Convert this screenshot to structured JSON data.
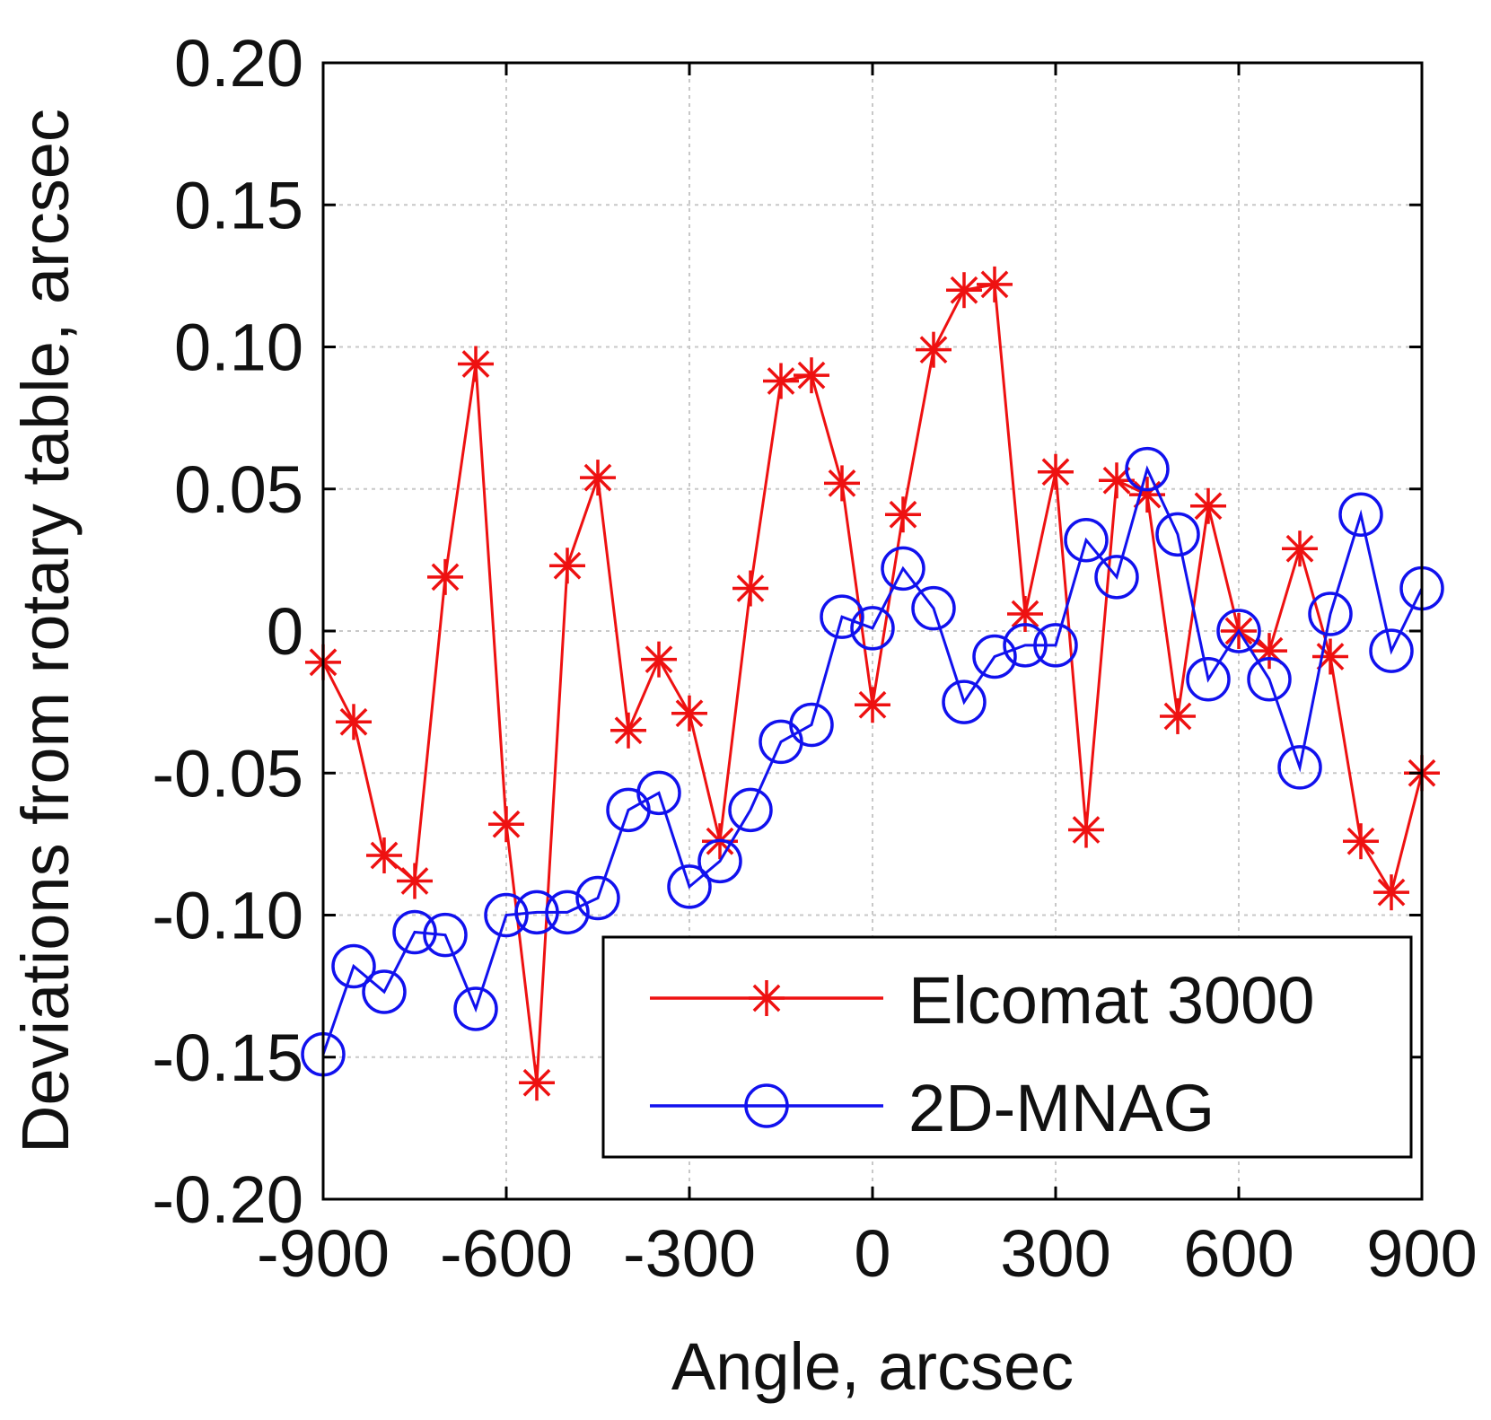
{
  "chart_data": {
    "type": "line",
    "title": "",
    "xlabel": "Angle, arcsec",
    "ylabel": "Deviations from rotary table, arcsec",
    "xlim": [
      -900,
      900
    ],
    "ylim": [
      -0.2,
      0.2
    ],
    "xticks": [
      -900,
      -600,
      -300,
      0,
      300,
      600,
      900
    ],
    "xtick_labels": [
      "-900",
      "-600",
      "-300",
      "0",
      "300",
      "600",
      "900"
    ],
    "yticks": [
      0.2,
      0.15,
      0.1,
      0.05,
      0,
      -0.05,
      -0.1,
      -0.15,
      -0.2
    ],
    "ytick_labels": [
      "0.20",
      "0.15",
      "0.10",
      "0.05",
      "0",
      "-0.05",
      "-0.10",
      "-0.15",
      "-0.20"
    ],
    "grid": true,
    "legend_position": "bottom-right",
    "x": [
      -900,
      -850,
      -800,
      -750,
      -700,
      -650,
      -600,
      -550,
      -500,
      -450,
      -400,
      -350,
      -300,
      -250,
      -200,
      -150,
      -100,
      -50,
      0,
      50,
      100,
      150,
      200,
      250,
      300,
      350,
      400,
      450,
      500,
      550,
      600,
      650,
      700,
      750,
      800,
      850,
      900
    ],
    "series": [
      {
        "name": "Elcomat 3000",
        "color": "#ee1111",
        "marker": "asterisk",
        "values": [
          -0.011,
          -0.032,
          -0.079,
          -0.088,
          0.019,
          0.094,
          -0.068,
          -0.159,
          0.023,
          0.054,
          -0.035,
          -0.01,
          -0.029,
          -0.074,
          0.015,
          0.088,
          0.09,
          0.052,
          -0.026,
          0.041,
          0.099,
          0.12,
          0.122,
          0.006,
          0.056,
          -0.07,
          0.053,
          0.048,
          -0.03,
          0.044,
          0.0,
          -0.007,
          0.029,
          -0.009,
          -0.074,
          -0.092,
          -0.05
        ]
      },
      {
        "name": "2D-MNAG",
        "color": "#1111ee",
        "marker": "circle",
        "values": [
          -0.149,
          -0.118,
          -0.127,
          -0.106,
          -0.107,
          -0.133,
          -0.1,
          -0.099,
          -0.099,
          -0.094,
          -0.063,
          -0.057,
          -0.09,
          -0.081,
          -0.063,
          -0.039,
          -0.033,
          0.005,
          0.001,
          0.022,
          0.008,
          -0.025,
          -0.009,
          -0.005,
          -0.005,
          0.032,
          0.019,
          0.057,
          0.034,
          -0.017,
          0.0,
          -0.017,
          -0.048,
          0.006,
          0.041,
          -0.007,
          0.015
        ]
      }
    ]
  }
}
